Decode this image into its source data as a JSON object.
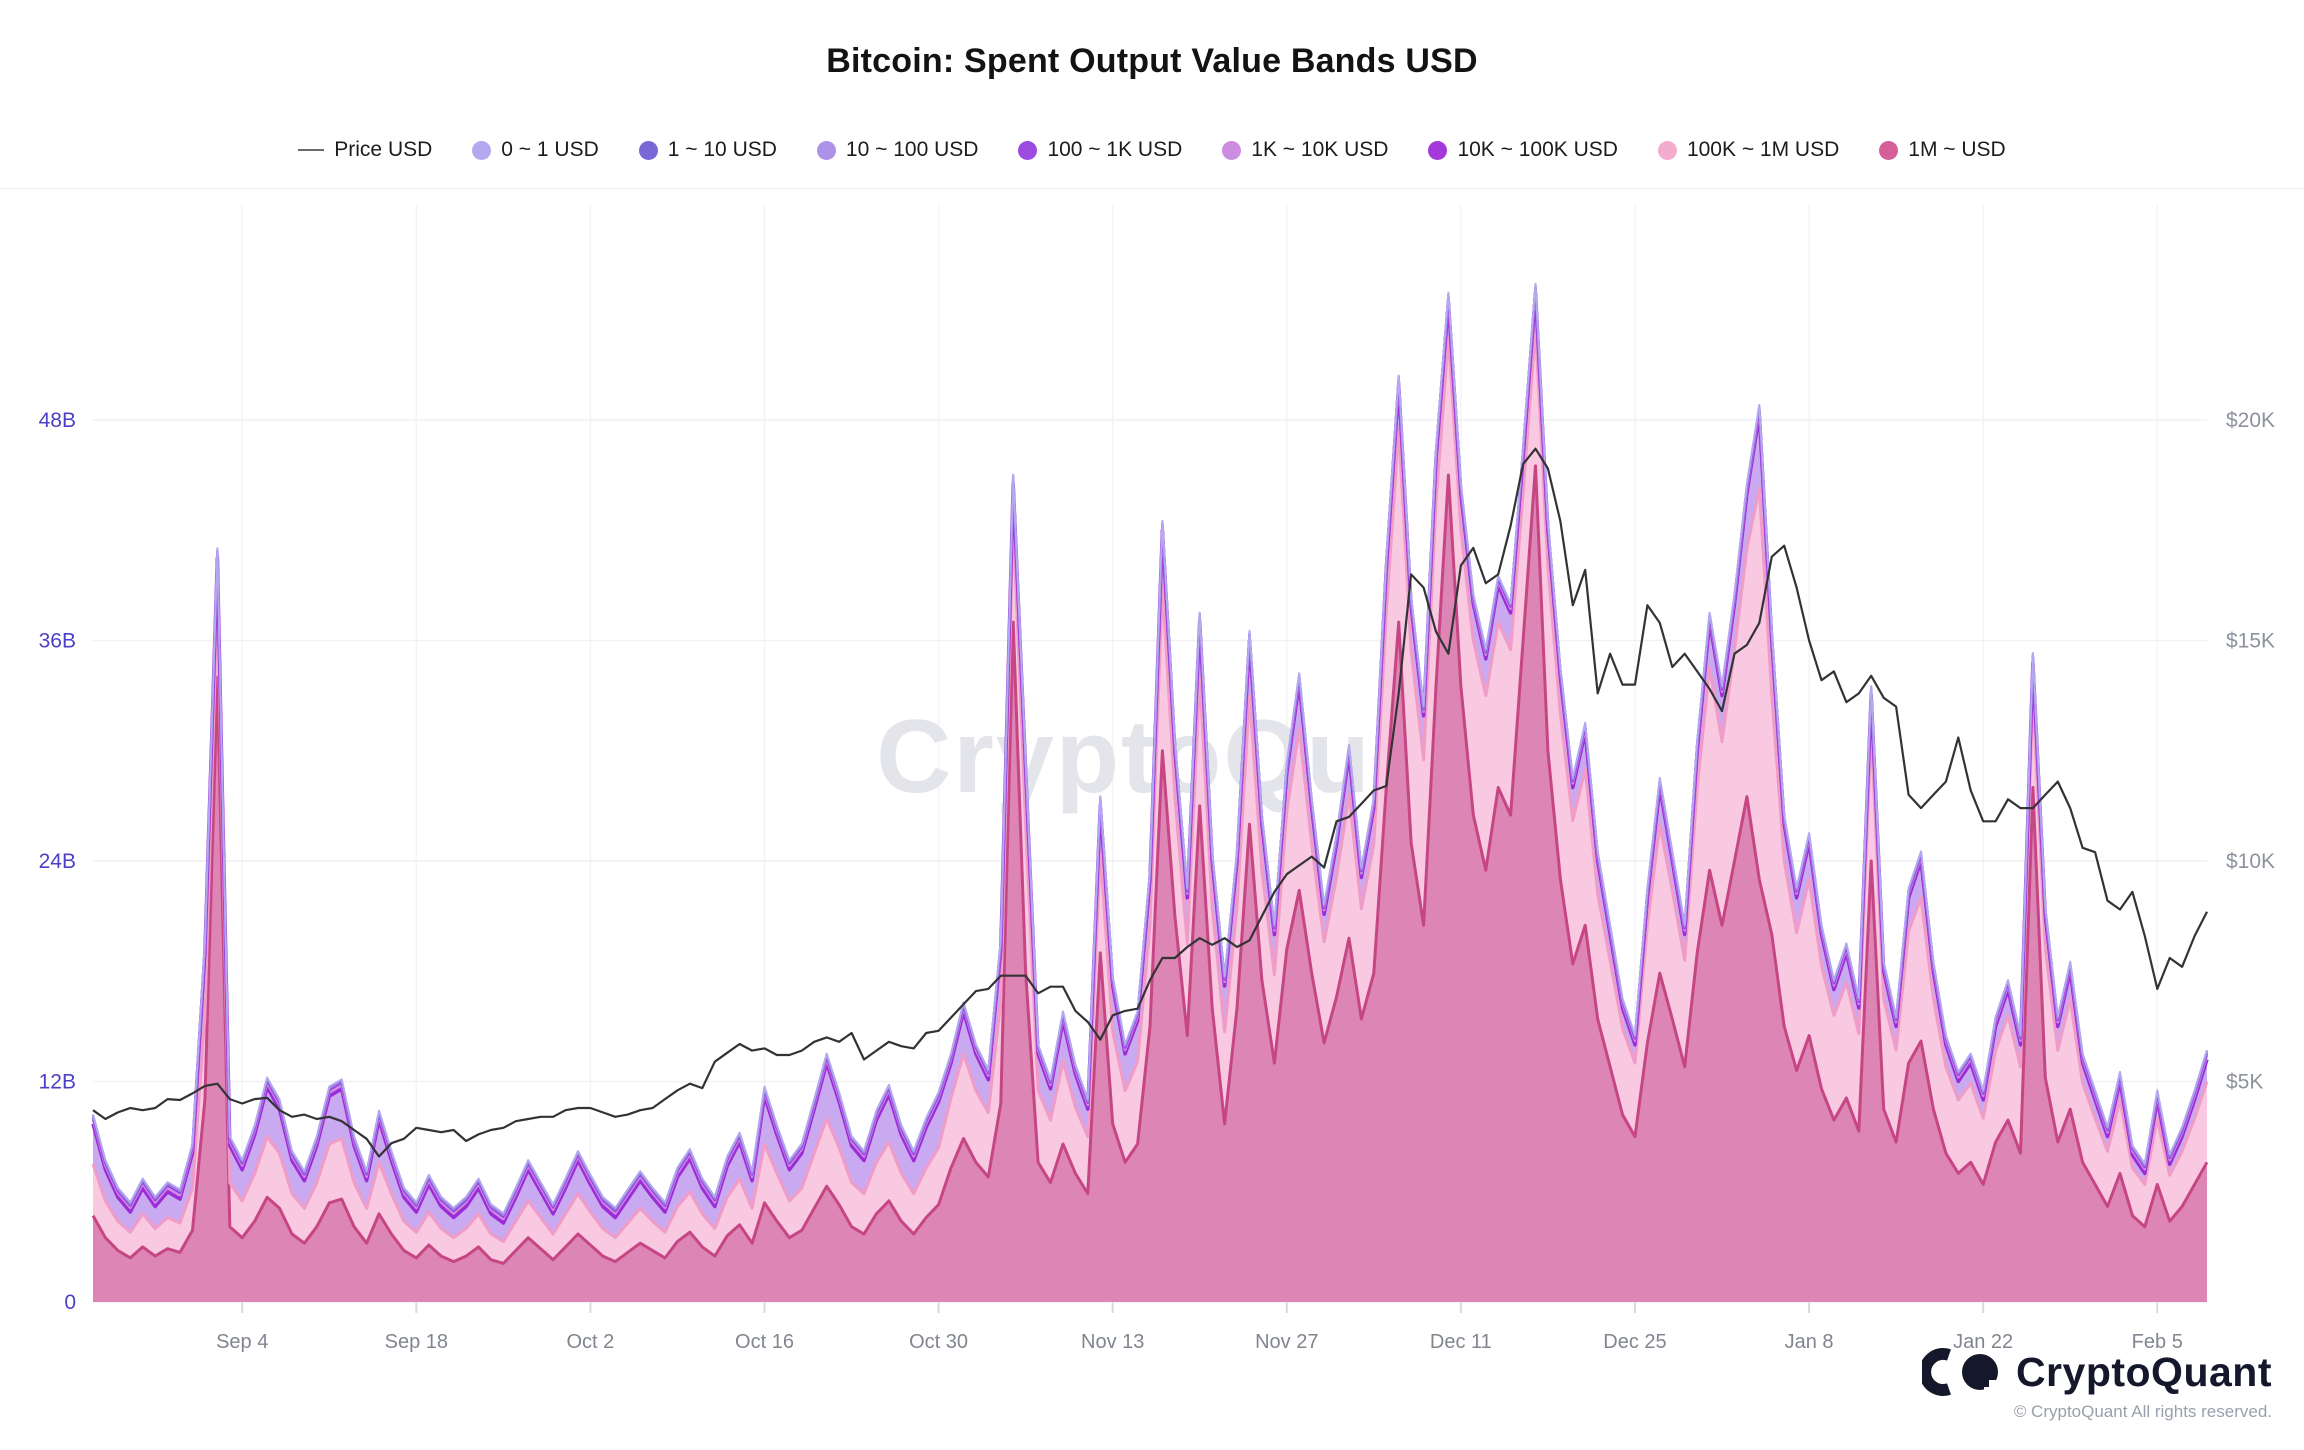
{
  "header": {
    "title": "Bitcoin: Spent Output Value Bands USD"
  },
  "legend": [
    {
      "label": "Price USD",
      "marker": "line",
      "color": "#6b6b6e"
    },
    {
      "label": "0 ~ 1 USD",
      "marker": "dot",
      "color": "#b4a8f0"
    },
    {
      "label": "1 ~ 10 USD",
      "marker": "dot",
      "color": "#7a67d6"
    },
    {
      "label": "10 ~ 100 USD",
      "marker": "dot",
      "color": "#ab91e8"
    },
    {
      "label": "100 ~ 1K USD",
      "marker": "dot",
      "color": "#9b4be0"
    },
    {
      "label": "1K ~ 10K USD",
      "marker": "dot",
      "color": "#cc8ce0"
    },
    {
      "label": "10K ~ 100K USD",
      "marker": "dot",
      "color": "#a538da"
    },
    {
      "label": "100K ~ 1M USD",
      "marker": "dot",
      "color": "#f3abce"
    },
    {
      "label": "1M ~ USD",
      "marker": "dot",
      "color": "#d45f99"
    }
  ],
  "footer": {
    "brand": "CryptoQuant",
    "copyright": "© CryptoQuant All rights reserved."
  },
  "chart_data": {
    "type": "area",
    "title": "Bitcoin: Spent Output Value Bands USD",
    "watermark": "CryptoQuant",
    "grid": "horizontal-and-vertical-faint",
    "legend_position": "top-center",
    "x_is_daily_from": "Aug 23",
    "x_ticks": [
      {
        "label": "Sep 4",
        "day": 12
      },
      {
        "label": "Sep 18",
        "day": 26
      },
      {
        "label": "Oct 2",
        "day": 40
      },
      {
        "label": "Oct 16",
        "day": 54
      },
      {
        "label": "Oct 30",
        "day": 68
      },
      {
        "label": "Nov 13",
        "day": 82
      },
      {
        "label": "Nov 27",
        "day": 96
      },
      {
        "label": "Dec 11",
        "day": 110
      },
      {
        "label": "Dec 25",
        "day": 124
      },
      {
        "label": "Jan 8",
        "day": 138
      },
      {
        "label": "Jan 22",
        "day": 152
      },
      {
        "label": "Feb 5",
        "day": 166
      }
    ],
    "y_left_axis": {
      "unit": "billions USD",
      "range": [
        0,
        60
      ],
      "ticks": [
        {
          "label": "0",
          "value": 0
        },
        {
          "label": "12B",
          "value": 12
        },
        {
          "label": "24B",
          "value": 24
        },
        {
          "label": "36B",
          "value": 36
        },
        {
          "label": "48B",
          "value": 48
        }
      ],
      "label_color": "#4c40c6"
    },
    "y_right_axis": {
      "unit": "USD thousands",
      "range": [
        0,
        22
      ],
      "ticks": [
        {
          "label": "$5K",
          "value": 5
        },
        {
          "label": "$10K",
          "value": 10
        },
        {
          "label": "$15K",
          "value": 15
        },
        {
          "label": "$20K",
          "value": 20
        }
      ],
      "label_color": "#8d929c"
    },
    "price_line": {
      "name": "Price USD",
      "color": "#333336",
      "width": 2.2
    },
    "price_usd_k": [
      4.35,
      4.15,
      4.3,
      4.4,
      4.35,
      4.4,
      4.6,
      4.58,
      4.73,
      4.9,
      4.95,
      4.6,
      4.5,
      4.6,
      4.63,
      4.35,
      4.2,
      4.25,
      4.15,
      4.2,
      4.1,
      3.9,
      3.7,
      3.3,
      3.6,
      3.7,
      3.95,
      3.9,
      3.85,
      3.9,
      3.65,
      3.8,
      3.9,
      3.95,
      4.1,
      4.15,
      4.2,
      4.2,
      4.35,
      4.4,
      4.4,
      4.3,
      4.2,
      4.25,
      4.35,
      4.4,
      4.6,
      4.8,
      4.95,
      4.85,
      5.45,
      5.65,
      5.85,
      5.7,
      5.75,
      5.6,
      5.6,
      5.7,
      5.9,
      6.0,
      5.9,
      6.1,
      5.5,
      5.7,
      5.9,
      5.8,
      5.75,
      6.1,
      6.15,
      6.45,
      6.75,
      7.05,
      7.1,
      7.4,
      7.4,
      7.4,
      7.0,
      7.15,
      7.15,
      6.6,
      6.35,
      5.95,
      6.5,
      6.6,
      6.65,
      7.3,
      7.8,
      7.8,
      8.05,
      8.25,
      8.1,
      8.25,
      8.05,
      8.2,
      8.75,
      9.3,
      9.7,
      9.9,
      10.1,
      9.85,
      10.9,
      11.0,
      11.3,
      11.6,
      11.7,
      13.8,
      16.5,
      16.2,
      15.2,
      14.7,
      16.7,
      17.1,
      16.3,
      16.5,
      17.6,
      19.0,
      19.35,
      18.9,
      17.7,
      15.8,
      16.6,
      13.8,
      14.7,
      14.0,
      14.0,
      15.8,
      15.4,
      14.4,
      14.7,
      14.3,
      13.9,
      13.4,
      14.7,
      14.9,
      15.4,
      16.9,
      17.15,
      16.2,
      15.0,
      14.1,
      14.3,
      13.6,
      13.8,
      14.2,
      13.7,
      13.5,
      11.5,
      11.2,
      11.5,
      11.8,
      12.8,
      11.6,
      10.9,
      10.9,
      11.4,
      11.2,
      11.2,
      11.5,
      11.8,
      11.2,
      10.3,
      10.2,
      9.1,
      8.9,
      9.3,
      8.3,
      7.1,
      7.8,
      7.6,
      8.3,
      8.85
    ],
    "bands": [
      {
        "name": "1M ~ USD",
        "fill": "#dd85b4",
        "stroke": "#c64684",
        "stroke_width": 3,
        "values_b": [
          4.7,
          3.5,
          2.8,
          2.4,
          3.0,
          2.5,
          2.9,
          2.7,
          3.9,
          11.0,
          34.0,
          4.1,
          3.5,
          4.4,
          5.7,
          5.1,
          3.7,
          3.2,
          4.1,
          5.4,
          5.6,
          4.1,
          3.2,
          4.8,
          3.7,
          2.8,
          2.4,
          3.1,
          2.5,
          2.2,
          2.5,
          3.0,
          2.3,
          2.1,
          2.8,
          3.5,
          2.9,
          2.3,
          3.0,
          3.7,
          3.1,
          2.5,
          2.2,
          2.7,
          3.2,
          2.8,
          2.4,
          3.3,
          3.8,
          3.0,
          2.5,
          3.6,
          4.2,
          3.2,
          5.4,
          4.4,
          3.5,
          3.9,
          5.1,
          6.3,
          5.3,
          4.1,
          3.7,
          4.8,
          5.5,
          4.4,
          3.7,
          4.6,
          5.3,
          7.3,
          8.9,
          7.6,
          6.8,
          10.8,
          37.0,
          18.0,
          7.6,
          6.5,
          8.6,
          7.0,
          5.9,
          19.0,
          9.7,
          7.6,
          8.6,
          15.0,
          30.0,
          21.0,
          14.5,
          27.0,
          16.0,
          9.7,
          16.0,
          26.0,
          17.5,
          13.0,
          19.2,
          22.4,
          17.9,
          14.1,
          16.6,
          19.8,
          15.4,
          17.9,
          28.0,
          37.0,
          25.0,
          20.5,
          33.5,
          45.0,
          33.5,
          26.5,
          23.5,
          28.0,
          26.5,
          36.0,
          45.5,
          30.0,
          23.0,
          18.4,
          20.5,
          15.4,
          12.8,
          10.2,
          9.0,
          14.1,
          17.9,
          15.4,
          12.8,
          19.0,
          23.5,
          20.5,
          24.0,
          27.5,
          23.0,
          20.0,
          15.0,
          12.6,
          14.5,
          11.6,
          9.9,
          11.1,
          9.3,
          24.0,
          10.5,
          8.7,
          13.0,
          14.2,
          10.5,
          8.1,
          7.0,
          7.6,
          6.4,
          8.7,
          9.9,
          8.1,
          28.0,
          12.2,
          8.7,
          10.5,
          7.6,
          6.4,
          5.2,
          7.0,
          4.7,
          4.1,
          6.4,
          4.4,
          5.2,
          6.4,
          7.6
        ]
      },
      {
        "name": "100K ~ 1M USD",
        "fill": "#f8c9e0",
        "stroke": "#f09cc8",
        "stroke_width": 3,
        "values_b": [
          2.8,
          2.0,
          1.6,
          1.4,
          1.8,
          1.5,
          1.7,
          1.6,
          2.3,
          4.5,
          4.5,
          2.4,
          2.0,
          2.6,
          3.3,
          3.0,
          2.2,
          1.9,
          2.4,
          3.2,
          3.3,
          2.4,
          1.9,
          2.8,
          2.2,
          1.6,
          1.4,
          1.8,
          1.5,
          1.3,
          1.5,
          1.8,
          1.4,
          1.2,
          1.6,
          2.0,
          1.7,
          1.4,
          1.8,
          2.2,
          1.8,
          1.5,
          1.3,
          1.6,
          1.9,
          1.6,
          1.4,
          1.9,
          2.2,
          1.8,
          1.5,
          2.1,
          2.5,
          1.9,
          3.2,
          2.6,
          2.0,
          2.3,
          3.0,
          3.7,
          3.1,
          2.4,
          2.2,
          2.8,
          3.2,
          2.6,
          2.2,
          2.7,
          3.1,
          3.8,
          4.6,
          3.9,
          3.5,
          5.6,
          5.5,
          8.0,
          3.9,
          3.4,
          4.5,
          3.6,
          3.1,
          5.5,
          5.0,
          3.9,
          4.5,
          5.5,
          9.0,
          6.5,
          5.0,
          7.0,
          5.5,
          5.0,
          5.5,
          7.0,
          6.0,
          4.8,
          7.5,
          8.8,
          7.0,
          5.5,
          6.5,
          7.8,
          6.0,
          7.0,
          9.5,
          10.5,
          10.5,
          9.0,
          10.0,
          7.5,
          8.5,
          9.5,
          9.5,
          9.0,
          9.0,
          8.0,
          7.5,
          10.0,
          9.0,
          7.8,
          8.5,
          6.8,
          5.8,
          4.7,
          4.0,
          6.4,
          8.1,
          7.0,
          5.8,
          9.0,
          11.0,
          10.0,
          11.5,
          13.5,
          21.3,
          13.0,
          9.0,
          7.5,
          8.5,
          6.7,
          5.7,
          6.3,
          5.3,
          7.0,
          6.0,
          5.0,
          7.2,
          7.8,
          6.0,
          4.7,
          4.0,
          4.3,
          3.6,
          5.0,
          5.7,
          4.7,
          5.0,
          7.0,
          5.0,
          6.0,
          4.3,
          3.6,
          3.0,
          4.0,
          2.6,
          2.3,
          3.6,
          2.5,
          3.0,
          3.6,
          4.4
        ]
      },
      {
        "name": "10K ~ 100K USD",
        "fill": "#c9a9ef",
        "stroke": "#9c2bd8",
        "stroke_width": 3.5,
        "values_b": [
          2.2,
          1.7,
          1.3,
          1.1,
          1.4,
          1.2,
          1.4,
          1.3,
          1.9,
          3.5,
          2.0,
          2.0,
          1.7,
          2.1,
          2.7,
          2.4,
          1.8,
          1.5,
          2.0,
          2.6,
          2.7,
          2.0,
          1.5,
          2.3,
          1.8,
          1.3,
          1.1,
          1.5,
          1.2,
          1.1,
          1.2,
          1.4,
          1.1,
          1.0,
          1.3,
          1.7,
          1.4,
          1.1,
          1.4,
          1.8,
          1.5,
          1.2,
          1.1,
          1.3,
          1.5,
          1.3,
          1.1,
          1.6,
          1.8,
          1.4,
          1.2,
          1.7,
          2.0,
          1.5,
          2.6,
          2.1,
          1.7,
          1.9,
          2.4,
          3.0,
          2.5,
          2.0,
          1.8,
          2.3,
          2.6,
          2.1,
          1.8,
          2.2,
          2.5,
          1.9,
          2.3,
          2.0,
          1.8,
          2.8,
          2.0,
          3.0,
          2.0,
          1.7,
          2.2,
          1.8,
          1.5,
          2.5,
          2.5,
          2.0,
          2.2,
          2.5,
          3.0,
          2.5,
          2.5,
          3.0,
          2.5,
          2.5,
          2.5,
          3.0,
          2.5,
          2.2,
          2.1,
          2.5,
          2.0,
          1.5,
          1.8,
          2.2,
          1.7,
          2.0,
          2.4,
          2.4,
          2.4,
          2.4,
          2.4,
          1.9,
          2.0,
          2.0,
          2.0,
          2.0,
          2.0,
          2.0,
          1.9,
          2.0,
          2.0,
          1.8,
          2.0,
          1.8,
          1.4,
          1.1,
          1.0,
          1.5,
          2.0,
          1.6,
          1.4,
          2.0,
          2.5,
          2.5,
          2.5,
          3.0,
          4.0,
          3.0,
          2.0,
          1.9,
          2.0,
          1.7,
          1.4,
          1.6,
          1.4,
          2.0,
          1.5,
          1.3,
          1.8,
          2.0,
          1.5,
          1.2,
          1.0,
          1.1,
          1.0,
          1.3,
          1.4,
          1.2,
          1.8,
          1.8,
          1.3,
          1.5,
          1.1,
          1.0,
          0.8,
          1.0,
          0.7,
          0.6,
          1.0,
          0.6,
          0.8,
          1.0,
          1.2
        ]
      },
      {
        "name": "1K ~ 10K USD",
        "fill": "#cc8ce0",
        "stroke": "#cc8ce0",
        "stroke_width": 2.5,
        "constant_b": 0.22
      },
      {
        "name": "100 ~ 1K USD",
        "fill": "#9440dd",
        "stroke": "#9440dd",
        "stroke_width": 2.5,
        "constant_b": 0.13
      },
      {
        "name": "10 ~ 100 USD",
        "fill": "#ab91e8",
        "stroke": "#ab91e8",
        "stroke_width": 2.0,
        "constant_b": 0.08
      },
      {
        "name": "1 ~ 10 USD",
        "fill": "#7a67d6",
        "stroke": "#7a67d6",
        "stroke_width": 2.0,
        "constant_b": 0.05
      },
      {
        "name": "0 ~ 1 USD",
        "fill": "#b4a8f0",
        "stroke": "#b4a8f0",
        "stroke_width": 2.0,
        "constant_b": 0.04
      }
    ]
  }
}
